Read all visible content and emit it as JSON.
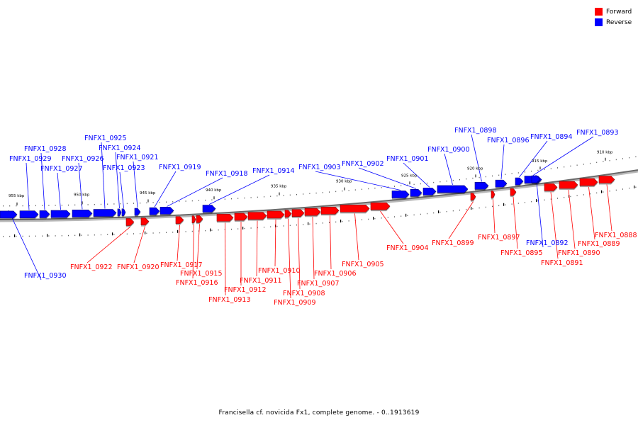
{
  "legend": {
    "forward": {
      "label": "Forward",
      "color": "#ff0000"
    },
    "reverse": {
      "label": "Reverse",
      "color": "#0000ff"
    }
  },
  "caption": "Francisella cf. novicida Fx1, complete genome. - 0..1913619",
  "scale_labels": [
    "955 kbp",
    "950 kbp",
    "945 kbp",
    "940 kbp",
    "935 kbp",
    "930 kbp",
    "925 kbp",
    "920 kbp",
    "915 kbp",
    "910 kbp"
  ],
  "genes": [
    {
      "id": "FNFX1_0930",
      "strand": "reverse"
    },
    {
      "id": "FNFX1_0929",
      "strand": "reverse"
    },
    {
      "id": "FNFX1_0928",
      "strand": "reverse"
    },
    {
      "id": "FNFX1_0927",
      "strand": "reverse"
    },
    {
      "id": "FNFX1_0926",
      "strand": "reverse"
    },
    {
      "id": "FNFX1_0925",
      "strand": "reverse"
    },
    {
      "id": "FNFX1_0924",
      "strand": "reverse"
    },
    {
      "id": "FNFX1_0923",
      "strand": "reverse"
    },
    {
      "id": "FNFX1_0922",
      "strand": "forward"
    },
    {
      "id": "FNFX1_0921",
      "strand": "reverse"
    },
    {
      "id": "FNFX1_0920",
      "strand": "forward"
    },
    {
      "id": "FNFX1_0919",
      "strand": "reverse"
    },
    {
      "id": "FNFX1_0918",
      "strand": "reverse"
    },
    {
      "id": "FNFX1_0917",
      "strand": "forward"
    },
    {
      "id": "FNFX1_0916",
      "strand": "forward"
    },
    {
      "id": "FNFX1_0915",
      "strand": "forward"
    },
    {
      "id": "FNFX1_0914",
      "strand": "reverse"
    },
    {
      "id": "FNFX1_0913",
      "strand": "forward"
    },
    {
      "id": "FNFX1_0912",
      "strand": "forward"
    },
    {
      "id": "FNFX1_0911",
      "strand": "forward"
    },
    {
      "id": "FNFX1_0910",
      "strand": "forward"
    },
    {
      "id": "FNFX1_0909",
      "strand": "forward"
    },
    {
      "id": "FNFX1_0908",
      "strand": "forward"
    },
    {
      "id": "FNFX1_0907",
      "strand": "forward"
    },
    {
      "id": "FNFX1_0906",
      "strand": "forward"
    },
    {
      "id": "FNFX1_0905",
      "strand": "forward"
    },
    {
      "id": "FNFX1_0904",
      "strand": "forward"
    },
    {
      "id": "FNFX1_0903",
      "strand": "reverse"
    },
    {
      "id": "FNFX1_0902",
      "strand": "reverse"
    },
    {
      "id": "FNFX1_0901",
      "strand": "reverse"
    },
    {
      "id": "FNFX1_0900",
      "strand": "reverse"
    },
    {
      "id": "FNFX1_0899",
      "strand": "forward"
    },
    {
      "id": "FNFX1_0898",
      "strand": "reverse"
    },
    {
      "id": "FNFX1_0897",
      "strand": "forward"
    },
    {
      "id": "FNFX1_0896",
      "strand": "reverse"
    },
    {
      "id": "FNFX1_0895",
      "strand": "forward"
    },
    {
      "id": "FNFX1_0894",
      "strand": "reverse"
    },
    {
      "id": "FNFX1_0893",
      "strand": "reverse"
    },
    {
      "id": "FNFX1_0892",
      "strand": "reverse"
    },
    {
      "id": "FNFX1_0891",
      "strand": "forward"
    },
    {
      "id": "FNFX1_0890",
      "strand": "forward"
    },
    {
      "id": "FNFX1_0889",
      "strand": "forward"
    },
    {
      "id": "FNFX1_0888",
      "strand": "forward"
    }
  ]
}
